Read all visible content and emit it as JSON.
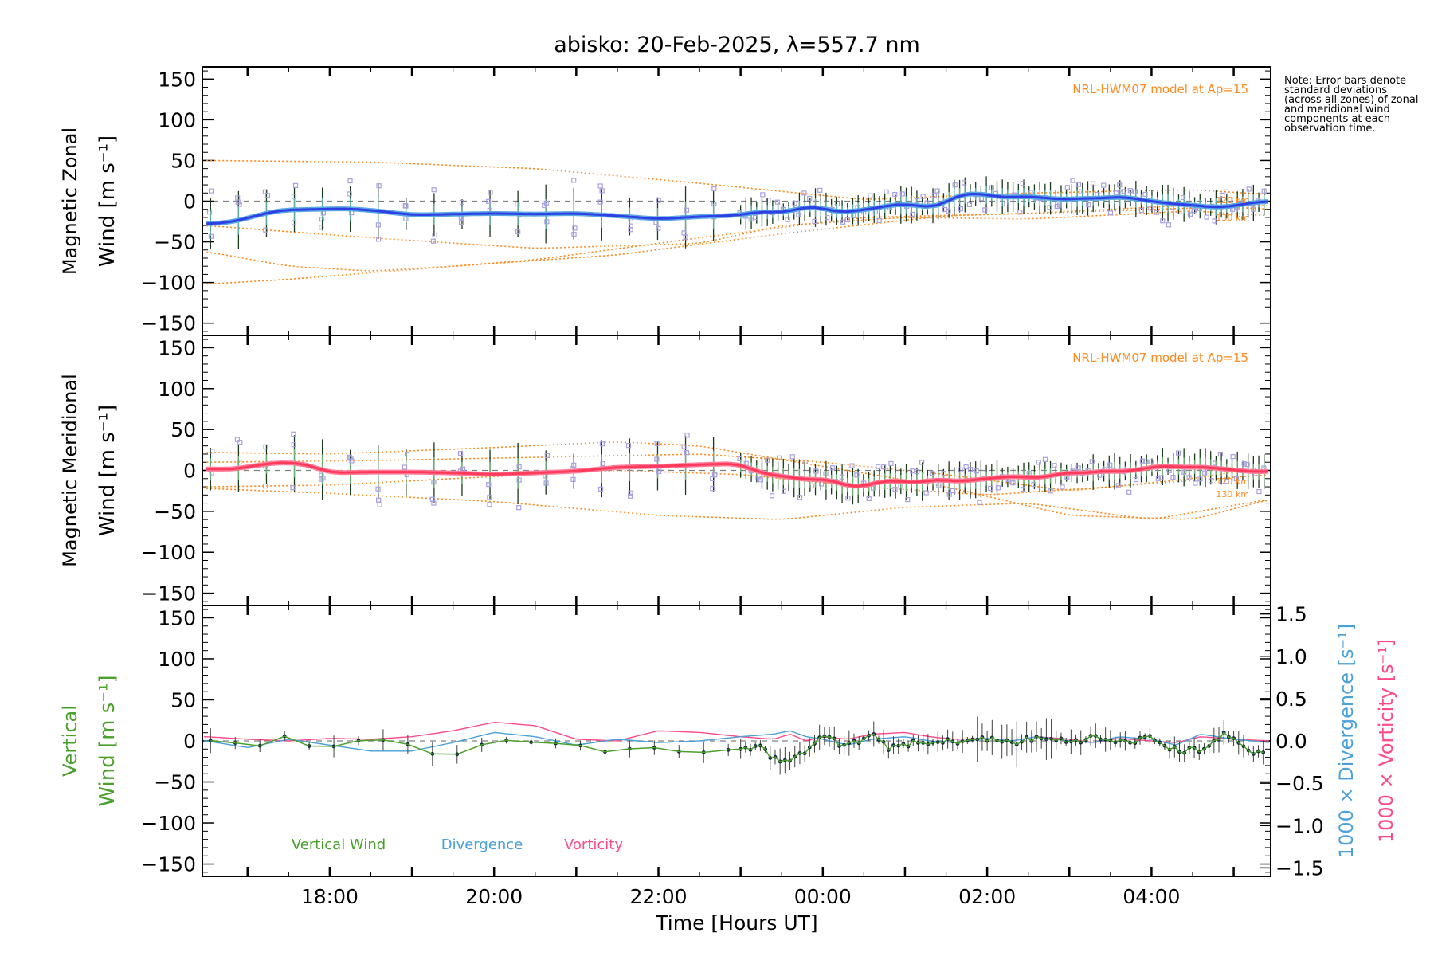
{
  "figure": {
    "title": "abisko: 20-Feb-2025, λ=557.7 nm",
    "note": "Note: Error bars denote standard deviations (across all zones) of zonal and meridional wind components at each observation time.",
    "colors": {
      "zonal": "#2f3fe6",
      "zonal_light": "#5aa8e0",
      "meridional": "#ff3a5a",
      "vertical": "#4aa02a",
      "divergence": "#4aa0d8",
      "vorticity": "#ff4a8a",
      "model": "#ff8a1e",
      "zone_points": "#a8a0e0",
      "error_bar": "#1a3a1a",
      "zero_line": "#808080"
    }
  },
  "chart_data": [
    {
      "type": "line",
      "name": "zonal-panel",
      "ylabel_line1": "Magnetic Zonal",
      "ylabel_line2": "Wind [m s⁻¹]",
      "ylim": [
        -165,
        165
      ],
      "yticks": [
        -150,
        -100,
        -50,
        0,
        50,
        100,
        150
      ],
      "xlim": [
        16.45,
        29.45
      ],
      "model_label": "NRL-HWM07 model at Ap=15",
      "altitude_labels": [
        "120 km",
        "130 km"
      ],
      "wind_t": [
        16.5,
        16.8,
        17.1,
        17.4,
        17.8,
        18.2,
        18.6,
        19.0,
        19.5,
        20.0,
        20.5,
        21.0,
        21.5,
        22.0,
        22.5,
        22.8,
        23.0,
        23.3,
        23.5,
        23.7,
        23.9,
        24.1,
        24.3,
        24.5,
        24.7,
        24.9,
        25.0,
        25.2,
        25.4,
        25.6,
        25.8,
        26.0,
        26.2,
        26.4,
        26.6,
        26.8,
        27.0,
        27.2,
        27.4,
        27.6,
        27.8,
        28.0,
        28.2,
        28.4,
        28.6,
        28.8,
        29.0,
        29.2,
        29.45
      ],
      "wind_v": [
        -28,
        -26,
        -18,
        -11,
        -10,
        -9,
        -12,
        -17,
        -16,
        -15,
        -16,
        -15,
        -18,
        -22,
        -19,
        -18,
        -17,
        -12,
        -15,
        -9,
        -6,
        -12,
        -14,
        -10,
        -8,
        -3,
        -4,
        -6,
        -8,
        6,
        10,
        8,
        4,
        6,
        5,
        3,
        2,
        4,
        3,
        6,
        3,
        0,
        -3,
        -4,
        -6,
        -8,
        -6,
        -2,
        0
      ],
      "model_curves": [
        {
          "t": [
            16.5,
            18.5,
            20.5,
            22.5,
            24.5,
            26.5,
            28.5,
            29.45
          ],
          "v": [
            50,
            48,
            40,
            22,
            2,
            10,
            14,
            8
          ]
        },
        {
          "t": [
            16.5,
            17.5,
            18.5,
            20.5,
            22.5,
            24.5,
            26.5,
            28.5,
            29.45
          ],
          "v": [
            -102,
            -96,
            -88,
            -72,
            -45,
            -20,
            -15,
            -5,
            -10
          ]
        },
        {
          "t": [
            16.5,
            17.5,
            18.5,
            19.5,
            21.5,
            23.5,
            25.5,
            27.5,
            29.45
          ],
          "v": [
            -62,
            -80,
            -86,
            -80,
            -66,
            -40,
            -18,
            -12,
            -5
          ]
        },
        {
          "t": [
            16.5,
            18.5,
            20.5,
            22.5,
            23.5,
            25.0,
            26.5,
            28.5,
            29.45
          ],
          "v": [
            -30,
            -45,
            -58,
            -52,
            -30,
            -20,
            -22,
            -12,
            -18
          ]
        }
      ]
    },
    {
      "type": "line",
      "name": "meridional-panel",
      "ylabel_line1": "Magnetic Meridional",
      "ylabel_line2": "Wind [m s⁻¹]",
      "ylim": [
        -165,
        165
      ],
      "yticks": [
        -150,
        -100,
        -50,
        0,
        50,
        100,
        150
      ],
      "xlim": [
        16.45,
        29.45
      ],
      "model_label": "NRL-HWM07 model at Ap=15",
      "altitude_labels": [
        "120 km",
        "130 km"
      ],
      "wind_t": [
        16.5,
        16.8,
        17.1,
        17.4,
        17.7,
        18.0,
        18.5,
        19.0,
        19.5,
        20.0,
        20.5,
        21.0,
        21.5,
        22.0,
        22.5,
        22.8,
        23.0,
        23.2,
        23.4,
        23.6,
        23.8,
        24.0,
        24.2,
        24.4,
        24.6,
        24.8,
        25.0,
        25.2,
        25.4,
        25.6,
        25.8,
        26.0,
        26.2,
        26.4,
        26.6,
        26.8,
        27.0,
        27.2,
        27.4,
        27.6,
        27.8,
        28.0,
        28.2,
        28.4,
        28.6,
        28.8,
        29.0,
        29.2,
        29.45
      ],
      "wind_v": [
        2,
        1,
        6,
        10,
        8,
        -3,
        -2,
        -2,
        -3,
        -5,
        -3,
        -1,
        4,
        5,
        7,
        8,
        8,
        -2,
        -6,
        -8,
        -12,
        -10,
        -15,
        -22,
        -16,
        -12,
        -14,
        -15,
        -10,
        -14,
        -12,
        -10,
        -8,
        -7,
        -10,
        -6,
        -2,
        -4,
        0,
        -2,
        0,
        4,
        6,
        3,
        5,
        2,
        1,
        -2,
        -1
      ],
      "model_curves": [
        {
          "t": [
            16.5,
            18.0,
            19.5,
            21.5,
            23.0,
            24.5,
            26.0,
            27.5,
            29.45
          ],
          "v": [
            -20,
            -18,
            -10,
            0,
            -5,
            -20,
            -30,
            -20,
            -5
          ]
        },
        {
          "t": [
            16.5,
            18.0,
            20.0,
            22.0,
            23.5,
            25.0,
            26.5,
            28.0,
            29.45
          ],
          "v": [
            -22,
            -28,
            -38,
            -55,
            -60,
            -45,
            -40,
            -60,
            -35
          ]
        },
        {
          "t": [
            16.5,
            18.0,
            20.0,
            21.5,
            22.5,
            24.0,
            25.5,
            27.0,
            28.5,
            29.45
          ],
          "v": [
            22,
            20,
            28,
            35,
            30,
            5,
            -20,
            -55,
            -60,
            -35
          ]
        },
        {
          "t": [
            16.5,
            18.5,
            20.5,
            22.5,
            24.0,
            25.5,
            27.0,
            28.5,
            29.45
          ],
          "v": [
            10,
            12,
            16,
            20,
            10,
            -5,
            -25,
            -10,
            5
          ]
        }
      ]
    },
    {
      "type": "line",
      "name": "vertical-panel",
      "ylabel_line1": "Vertical",
      "ylabel_line2": "Wind [m s⁻¹]",
      "ylim": [
        -165,
        165
      ],
      "yticks": [
        -150,
        -100,
        -50,
        0,
        50,
        100,
        150
      ],
      "xlim": [
        16.45,
        29.45
      ],
      "xticks": [
        18,
        20,
        22,
        24,
        26,
        28
      ],
      "xtick_labels": [
        "18:00",
        "20:00",
        "22:00",
        "00:00",
        "02:00",
        "04:00"
      ],
      "xlabel": "Time [Hours UT]",
      "right_ylim": [
        -1.6,
        1.6
      ],
      "right_yticks": [
        -1.5,
        -1.0,
        -0.5,
        0.0,
        0.5,
        1.0,
        1.5
      ],
      "right_ylabel_divergence": "1000 × Divergence [s⁻¹]",
      "right_ylabel_vorticity": "1000 × Vorticity [s⁻¹]",
      "legend": [
        "Vertical Wind",
        "Divergence",
        "Vorticity"
      ],
      "vertical_t": [
        16.5,
        16.7,
        17.0,
        17.2,
        17.4,
        17.7,
        18.0,
        18.3,
        18.6,
        19.0,
        19.3,
        19.6,
        20.0,
        20.5,
        21.0,
        21.3,
        21.6,
        22.0,
        22.4,
        22.7,
        23.0,
        23.2,
        23.4,
        23.6,
        23.8,
        24.0,
        24.2,
        24.4,
        24.6,
        24.8,
        25.0,
        25.3,
        25.6,
        26.0,
        26.3,
        26.6,
        27.0,
        27.3,
        27.6,
        28.0,
        28.3,
        28.6,
        28.9,
        29.2,
        29.45
      ],
      "vertical_v": [
        2,
        -5,
        0,
        -8,
        8,
        -6,
        -8,
        0,
        2,
        -5,
        -18,
        -16,
        2,
        -2,
        -4,
        -14,
        -10,
        -8,
        -16,
        -12,
        -10,
        -6,
        -20,
        -28,
        -10,
        10,
        -5,
        -2,
        6,
        -8,
        -3,
        -4,
        0,
        2,
        -2,
        3,
        0,
        4,
        -2,
        3,
        -12,
        -10,
        8,
        -12,
        -18
      ],
      "divergence_t": [
        16.5,
        17.0,
        17.5,
        18.0,
        18.5,
        19.0,
        19.5,
        20.0,
        20.5,
        21.0,
        21.5,
        22.0,
        22.5,
        23.0,
        23.4,
        23.6,
        23.8,
        24.0,
        24.3,
        24.6,
        25.0,
        25.3,
        25.6,
        26.0,
        26.3,
        26.6,
        27.0,
        27.3,
        27.6,
        28.0,
        28.3,
        28.6,
        29.0,
        29.45
      ],
      "divergence_v": [
        0.0,
        -0.08,
        0.02,
        -0.05,
        -0.12,
        -0.12,
        -0.02,
        0.1,
        0.05,
        -0.05,
        0.02,
        -0.02,
        0.0,
        0.05,
        0.08,
        0.12,
        0.05,
        0.02,
        -0.05,
        0.02,
        0.05,
        0.0,
        -0.02,
        0.03,
        0.0,
        0.05,
        0.0,
        -0.02,
        0.05,
        0.02,
        -0.05,
        0.08,
        0.02,
        -0.02
      ],
      "vorticity_t": [
        16.5,
        17.0,
        17.5,
        18.0,
        18.5,
        19.0,
        19.5,
        20.0,
        20.5,
        21.0,
        21.5,
        22.0,
        22.5,
        23.0,
        23.4,
        23.6,
        23.8,
        24.0,
        24.3,
        24.6,
        25.0,
        25.3,
        25.6,
        26.0,
        26.3,
        26.6,
        27.0,
        27.3,
        27.6,
        28.0,
        28.3,
        28.6,
        29.0,
        29.45
      ],
      "vorticity_v": [
        0.05,
        0.02,
        0.0,
        0.03,
        0.02,
        0.05,
        0.12,
        0.22,
        0.18,
        0.02,
        0.0,
        0.12,
        0.1,
        0.05,
        0.02,
        0.08,
        0.0,
        0.05,
        0.02,
        0.08,
        0.1,
        0.05,
        0.02,
        0.03,
        0.0,
        0.05,
        0.02,
        -0.02,
        0.03,
        0.0,
        -0.02,
        0.05,
        0.02,
        0.0
      ]
    }
  ]
}
